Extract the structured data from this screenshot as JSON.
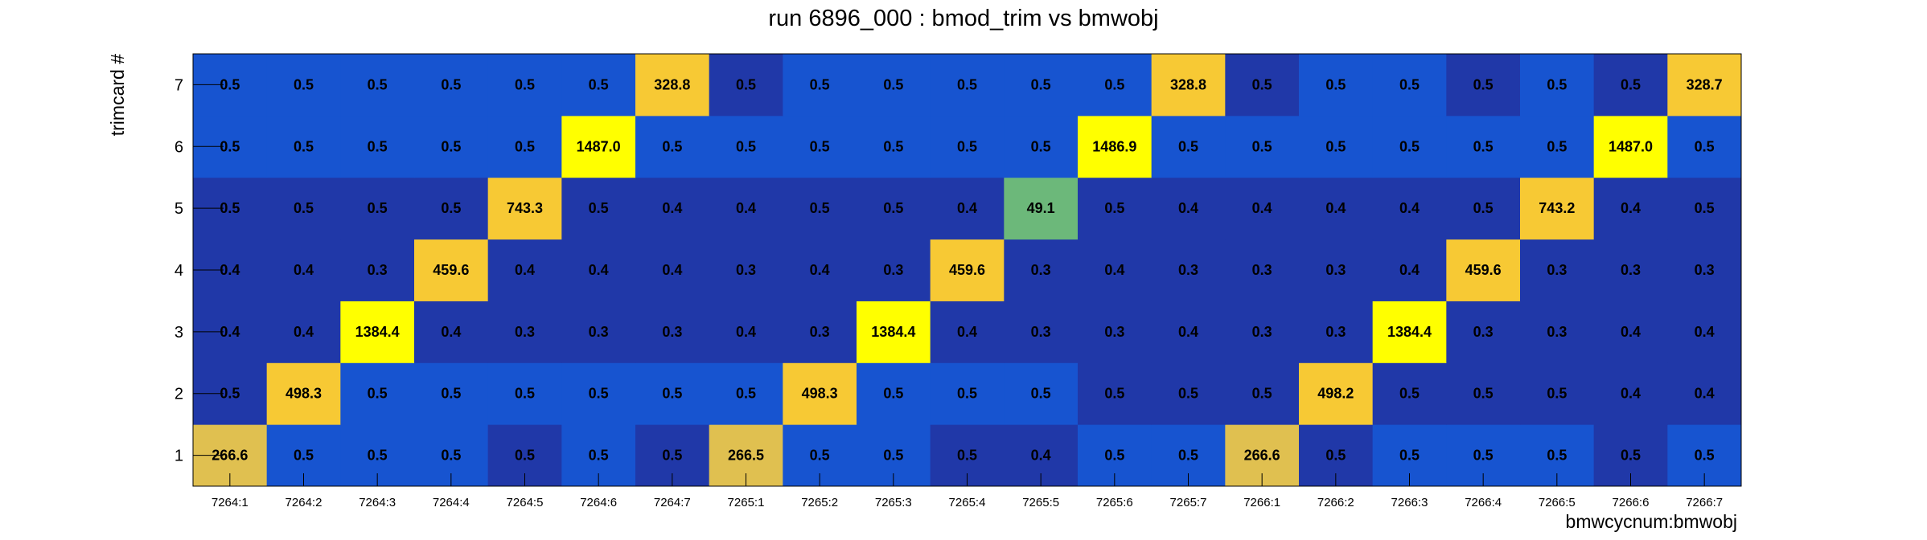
{
  "chart_data": {
    "type": "heatmap",
    "title": "run 6896_000 : bmod_trim vs bmwobj",
    "xlabel": "bmwcycnum:bmwobj",
    "ylabel": "trimcard #",
    "x_categories": [
      "7264:1",
      "7264:2",
      "7264:3",
      "7264:4",
      "7264:5",
      "7264:6",
      "7264:7",
      "7265:1",
      "7265:2",
      "7265:3",
      "7265:4",
      "7265:5",
      "7265:6",
      "7265:7",
      "7266:1",
      "7266:2",
      "7266:3",
      "7266:4",
      "7266:5",
      "7266:6",
      "7266:7"
    ],
    "y_categories": [
      "1",
      "2",
      "3",
      "4",
      "5",
      "6",
      "7"
    ],
    "values": [
      [
        "266.6",
        "0.5",
        "0.5",
        "0.5",
        "0.5",
        "0.5",
        "0.5",
        "266.5",
        "0.5",
        "0.5",
        "0.5",
        "0.4",
        "0.5",
        "0.5",
        "266.6",
        "0.5",
        "0.5",
        "0.5",
        "0.5",
        "0.5",
        "0.5"
      ],
      [
        "0.5",
        "498.3",
        "0.5",
        "0.5",
        "0.5",
        "0.5",
        "0.5",
        "0.5",
        "498.3",
        "0.5",
        "0.5",
        "0.5",
        "0.5",
        "0.5",
        "0.5",
        "498.2",
        "0.5",
        "0.5",
        "0.5",
        "0.4",
        "0.4"
      ],
      [
        "0.4",
        "0.4",
        "1384.4",
        "0.4",
        "0.3",
        "0.3",
        "0.3",
        "0.4",
        "0.3",
        "1384.4",
        "0.4",
        "0.3",
        "0.3",
        "0.4",
        "0.3",
        "0.3",
        "1384.4",
        "0.3",
        "0.3",
        "0.4",
        "0.4"
      ],
      [
        "0.4",
        "0.4",
        "0.3",
        "459.6",
        "0.4",
        "0.4",
        "0.4",
        "0.3",
        "0.4",
        "0.3",
        "459.6",
        "0.3",
        "0.4",
        "0.3",
        "0.3",
        "0.3",
        "0.4",
        "459.6",
        "0.3",
        "0.3",
        "0.3"
      ],
      [
        "0.5",
        "0.5",
        "0.5",
        "0.5",
        "743.3",
        "0.5",
        "0.4",
        "0.4",
        "0.5",
        "0.5",
        "0.4",
        "49.1",
        "0.5",
        "0.4",
        "0.4",
        "0.4",
        "0.4",
        "0.5",
        "743.2",
        "0.4",
        "0.5"
      ],
      [
        "0.5",
        "0.5",
        "0.5",
        "0.5",
        "0.5",
        "1487.0",
        "0.5",
        "0.5",
        "0.5",
        "0.5",
        "0.5",
        "0.5",
        "1486.9",
        "0.5",
        "0.5",
        "0.5",
        "0.5",
        "0.5",
        "0.5",
        "1487.0",
        "0.5"
      ],
      [
        "0.5",
        "0.5",
        "0.5",
        "0.5",
        "0.5",
        "0.5",
        "328.8",
        "0.5",
        "0.5",
        "0.5",
        "0.5",
        "0.5",
        "0.5",
        "328.8",
        "0.5",
        "0.5",
        "0.5",
        "0.5",
        "0.5",
        "0.5",
        "328.7"
      ]
    ],
    "cell_colors": [
      [
        "#e0c050",
        "#1754d0",
        "#1754d0",
        "#1754d0",
        "#2038a8",
        "#1754d0",
        "#2038a8",
        "#e0c050",
        "#1754d0",
        "#1754d0",
        "#2038a8",
        "#2038a8",
        "#1754d0",
        "#1754d0",
        "#e0c050",
        "#2038a8",
        "#1754d0",
        "#1754d0",
        "#1754d0",
        "#2038a8",
        "#1754d0"
      ],
      [
        "#2038a8",
        "#f7c934",
        "#1754d0",
        "#1754d0",
        "#1754d0",
        "#1754d0",
        "#1754d0",
        "#1754d0",
        "#f7c934",
        "#1754d0",
        "#1754d0",
        "#1754d0",
        "#2038a8",
        "#2038a8",
        "#2038a8",
        "#f7c934",
        "#2038a8",
        "#2038a8",
        "#2038a8",
        "#2038a8",
        "#2038a8"
      ],
      [
        "#2038a8",
        "#2038a8",
        "#ffff00",
        "#2038a8",
        "#2038a8",
        "#2038a8",
        "#2038a8",
        "#2038a8",
        "#2038a8",
        "#ffff00",
        "#2038a8",
        "#2038a8",
        "#2038a8",
        "#2038a8",
        "#2038a8",
        "#2038a8",
        "#ffff00",
        "#2038a8",
        "#2038a8",
        "#2038a8",
        "#2038a8"
      ],
      [
        "#2038a8",
        "#2038a8",
        "#2038a8",
        "#f7c934",
        "#2038a8",
        "#2038a8",
        "#2038a8",
        "#2038a8",
        "#2038a8",
        "#2038a8",
        "#f7c934",
        "#2038a8",
        "#2038a8",
        "#2038a8",
        "#2038a8",
        "#2038a8",
        "#2038a8",
        "#f7c934",
        "#2038a8",
        "#2038a8",
        "#2038a8"
      ],
      [
        "#2038a8",
        "#2038a8",
        "#2038a8",
        "#2038a8",
        "#f7c934",
        "#2038a8",
        "#2038a8",
        "#2038a8",
        "#2038a8",
        "#2038a8",
        "#2038a8",
        "#6cb87a",
        "#2038a8",
        "#2038a8",
        "#2038a8",
        "#2038a8",
        "#2038a8",
        "#2038a8",
        "#f7c934",
        "#2038a8",
        "#2038a8"
      ],
      [
        "#1754d0",
        "#1754d0",
        "#1754d0",
        "#1754d0",
        "#1754d0",
        "#ffff00",
        "#1754d0",
        "#1754d0",
        "#1754d0",
        "#1754d0",
        "#1754d0",
        "#1754d0",
        "#ffff00",
        "#1754d0",
        "#1754d0",
        "#1754d0",
        "#1754d0",
        "#1754d0",
        "#1754d0",
        "#ffff00",
        "#1754d0"
      ],
      [
        "#1754d0",
        "#1754d0",
        "#1754d0",
        "#1754d0",
        "#1754d0",
        "#1754d0",
        "#f7c934",
        "#2038a8",
        "#1754d0",
        "#1754d0",
        "#1754d0",
        "#1754d0",
        "#1754d0",
        "#f7c934",
        "#2038a8",
        "#1754d0",
        "#1754d0",
        "#2038a8",
        "#1754d0",
        "#2038a8",
        "#f7c934"
      ]
    ],
    "legend": "none",
    "grid": false
  }
}
